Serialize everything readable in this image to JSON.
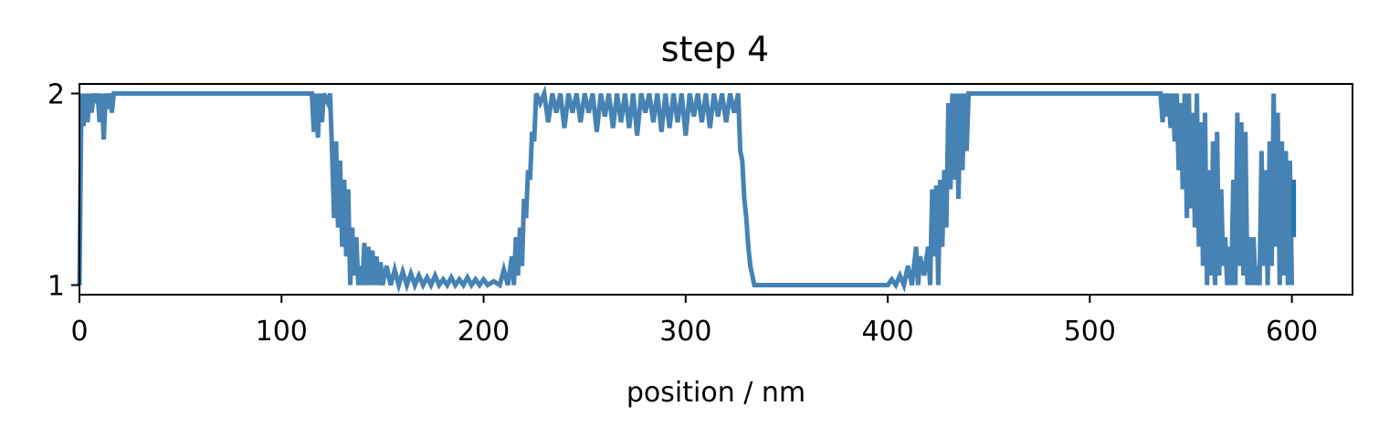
{
  "chart_data": {
    "type": "line",
    "title": "step 4",
    "xlabel": "position / nm",
    "ylabel": "",
    "xlim": [
      0,
      630
    ],
    "ylim": [
      0.95,
      2.05
    ],
    "xticks": [
      0,
      100,
      200,
      300,
      400,
      500,
      600
    ],
    "yticks": [
      1,
      2
    ],
    "grid": false,
    "legend": "none",
    "colors": {
      "series": "#4682b4",
      "tail": "#1f77b4"
    },
    "series": [
      {
        "points": [
          [
            0,
            1.0
          ],
          [
            0.5,
            1.5
          ],
          [
            1,
            2.0
          ],
          [
            2,
            1.83
          ],
          [
            3,
            2.0
          ],
          [
            4,
            1.85
          ],
          [
            5,
            2.0
          ],
          [
            6,
            1.9
          ],
          [
            7,
            2.0
          ],
          [
            8,
            1.95
          ],
          [
            9,
            2.0
          ],
          [
            10,
            1.85
          ],
          [
            11,
            2.0
          ],
          [
            12,
            1.76
          ],
          [
            13,
            2.0
          ],
          [
            14,
            1.92
          ],
          [
            15,
            2.0
          ],
          [
            16,
            1.9
          ],
          [
            17,
            2.0
          ],
          [
            115,
            2.0
          ],
          [
            116,
            1.8
          ],
          [
            117,
            2.0
          ],
          [
            118,
            1.77
          ],
          [
            119,
            2.0
          ],
          [
            120,
            1.85
          ],
          [
            121,
            2.0
          ],
          [
            123,
            1.95
          ],
          [
            124,
            2.0
          ],
          [
            125,
            1.7
          ],
          [
            126,
            1.35
          ],
          [
            127,
            1.75
          ],
          [
            128,
            1.3
          ],
          [
            129,
            1.65
          ],
          [
            130,
            1.2
          ],
          [
            131,
            1.55
          ],
          [
            132,
            1.15
          ],
          [
            133,
            1.5
          ],
          [
            134,
            1.0
          ],
          [
            135,
            1.3
          ],
          [
            136,
            1.05
          ],
          [
            137,
            1.25
          ],
          [
            138,
            1.0
          ],
          [
            139,
            1.1
          ],
          [
            140,
            1.0
          ],
          [
            141,
            1.22
          ],
          [
            142,
            1.0
          ],
          [
            143,
            1.2
          ],
          [
            144,
            1.0
          ],
          [
            145,
            1.18
          ],
          [
            146,
            1.0
          ],
          [
            147,
            1.15
          ],
          [
            148,
            1.0
          ],
          [
            149,
            1.12
          ],
          [
            150,
            1.0
          ],
          [
            152,
            1.1
          ],
          [
            154,
            1.0
          ],
          [
            156,
            1.08
          ],
          [
            158,
            1.0
          ],
          [
            160,
            1.07
          ],
          [
            162,
            1.0
          ],
          [
            164,
            1.06
          ],
          [
            166,
            1.0
          ],
          [
            168,
            1.05
          ],
          [
            170,
            1.0
          ],
          [
            172,
            1.04
          ],
          [
            174,
            1.0
          ],
          [
            176,
            1.05
          ],
          [
            178,
            1.0
          ],
          [
            180,
            1.03
          ],
          [
            182,
            1.0
          ],
          [
            184,
            1.04
          ],
          [
            186,
            1.0
          ],
          [
            188,
            1.03
          ],
          [
            190,
            1.0
          ],
          [
            192,
            1.04
          ],
          [
            194,
            1.0
          ],
          [
            196,
            1.03
          ],
          [
            198,
            1.0
          ],
          [
            200,
            1.03
          ],
          [
            202,
            1.0
          ],
          [
            205,
            1.02
          ],
          [
            208,
            1.0
          ],
          [
            210,
            1.08
          ],
          [
            212,
            1.0
          ],
          [
            214,
            1.15
          ],
          [
            215,
            1.0
          ],
          [
            216,
            1.25
          ],
          [
            217,
            1.05
          ],
          [
            218,
            1.3
          ],
          [
            219,
            1.1
          ],
          [
            220,
            1.45
          ],
          [
            221,
            1.35
          ],
          [
            222,
            1.6
          ],
          [
            223,
            1.55
          ],
          [
            224,
            1.8
          ],
          [
            225,
            1.75
          ],
          [
            226,
            2.0
          ],
          [
            228,
            1.95
          ],
          [
            230,
            2.0
          ],
          [
            232,
            1.85
          ],
          [
            234,
            2.0
          ],
          [
            236,
            1.9
          ],
          [
            238,
            2.0
          ],
          [
            240,
            1.82
          ],
          [
            242,
            2.0
          ],
          [
            244,
            1.9
          ],
          [
            246,
            2.0
          ],
          [
            248,
            1.85
          ],
          [
            250,
            2.0
          ],
          [
            252,
            1.9
          ],
          [
            254,
            2.0
          ],
          [
            256,
            1.8
          ],
          [
            258,
            2.0
          ],
          [
            260,
            1.88
          ],
          [
            262,
            2.0
          ],
          [
            264,
            1.82
          ],
          [
            266,
            2.0
          ],
          [
            268,
            1.85
          ],
          [
            270,
            2.0
          ],
          [
            272,
            1.82
          ],
          [
            274,
            2.0
          ],
          [
            276,
            1.78
          ],
          [
            278,
            2.0
          ],
          [
            280,
            1.9
          ],
          [
            282,
            2.0
          ],
          [
            284,
            1.85
          ],
          [
            286,
            2.0
          ],
          [
            288,
            1.8
          ],
          [
            290,
            2.0
          ],
          [
            292,
            1.82
          ],
          [
            294,
            2.0
          ],
          [
            296,
            1.85
          ],
          [
            298,
            2.0
          ],
          [
            300,
            1.78
          ],
          [
            302,
            2.0
          ],
          [
            304,
            1.88
          ],
          [
            306,
            2.0
          ],
          [
            308,
            1.85
          ],
          [
            310,
            2.0
          ],
          [
            312,
            1.82
          ],
          [
            314,
            2.0
          ],
          [
            316,
            1.88
          ],
          [
            318,
            2.0
          ],
          [
            320,
            1.85
          ],
          [
            322,
            2.0
          ],
          [
            324,
            1.9
          ],
          [
            326,
            2.0
          ],
          [
            327,
            1.7
          ],
          [
            328,
            1.65
          ],
          [
            329,
            1.45
          ],
          [
            330,
            1.35
          ],
          [
            331,
            1.2
          ],
          [
            332,
            1.1
          ],
          [
            333,
            1.05
          ],
          [
            334,
            1.0
          ],
          [
            340,
            1.0
          ],
          [
            350,
            1.0
          ],
          [
            360,
            1.0
          ],
          [
            370,
            1.0
          ],
          [
            380,
            1.0
          ],
          [
            390,
            1.0
          ],
          [
            400,
            1.0
          ],
          [
            402,
            1.03
          ],
          [
            404,
            1.0
          ],
          [
            406,
            1.05
          ],
          [
            408,
            1.0
          ],
          [
            410,
            1.1
          ],
          [
            412,
            1.0
          ],
          [
            414,
            1.2
          ],
          [
            415,
            1.0
          ],
          [
            416,
            1.15
          ],
          [
            418,
            1.05
          ],
          [
            420,
            1.2
          ],
          [
            421,
            1.0
          ],
          [
            422,
            1.5
          ],
          [
            423,
            1.15
          ],
          [
            424,
            1.52
          ],
          [
            425,
            1.0
          ],
          [
            426,
            1.55
          ],
          [
            427,
            1.2
          ],
          [
            428,
            1.6
          ],
          [
            429,
            1.3
          ],
          [
            430,
            1.95
          ],
          [
            431,
            1.5
          ],
          [
            432,
            2.0
          ],
          [
            433,
            1.55
          ],
          [
            434,
            2.0
          ],
          [
            435,
            1.45
          ],
          [
            436,
            2.0
          ],
          [
            437,
            1.6
          ],
          [
            438,
            2.0
          ],
          [
            439,
            1.7
          ],
          [
            440,
            2.0
          ],
          [
            535,
            2.0
          ],
          [
            536,
            1.85
          ],
          [
            537,
            2.0
          ],
          [
            538,
            1.88
          ],
          [
            539,
            2.0
          ],
          [
            540,
            1.82
          ],
          [
            541,
            2.0
          ],
          [
            542,
            1.75
          ],
          [
            543,
            2.0
          ],
          [
            544,
            1.6
          ],
          [
            545,
            1.95
          ],
          [
            546,
            1.5
          ],
          [
            547,
            2.0
          ],
          [
            548,
            1.35
          ],
          [
            549,
            2.0
          ],
          [
            550,
            1.4
          ],
          [
            551,
            1.9
          ],
          [
            552,
            1.3
          ],
          [
            553,
            2.0
          ],
          [
            554,
            1.2
          ],
          [
            555,
            1.85
          ],
          [
            556,
            1.1
          ],
          [
            557,
            1.9
          ],
          [
            558,
            1.0
          ],
          [
            559,
            1.6
          ],
          [
            560,
            1.05
          ],
          [
            561,
            1.75
          ],
          [
            562,
            1.0
          ],
          [
            563,
            1.8
          ],
          [
            564,
            1.05
          ],
          [
            565,
            1.5
          ],
          [
            566,
            1.1
          ],
          [
            567,
            1.25
          ],
          [
            568,
            1.0
          ],
          [
            569,
            1.2
          ],
          [
            570,
            1.0
          ],
          [
            571,
            1.55
          ],
          [
            572,
            1.0
          ],
          [
            573,
            1.9
          ],
          [
            574,
            1.1
          ],
          [
            575,
            1.85
          ],
          [
            576,
            1.05
          ],
          [
            577,
            1.8
          ],
          [
            578,
            1.0
          ],
          [
            579,
            1.25
          ],
          [
            580,
            1.0
          ],
          [
            581,
            1.25
          ],
          [
            582,
            1.0
          ],
          [
            583,
            1.1
          ],
          [
            584,
            1.0
          ],
          [
            585,
            1.7
          ],
          [
            586,
            1.1
          ],
          [
            587,
            1.6
          ],
          [
            588,
            1.0
          ],
          [
            589,
            1.75
          ],
          [
            590,
            1.1
          ],
          [
            591,
            2.0
          ],
          [
            592,
            1.2
          ],
          [
            593,
            1.9
          ],
          [
            594,
            1.0
          ],
          [
            595,
            1.75
          ],
          [
            596,
            1.05
          ],
          [
            597,
            1.7
          ],
          [
            598,
            1.0
          ],
          [
            599,
            1.65
          ],
          [
            600,
            1.0
          ]
        ]
      }
    ],
    "tail_segment": [
      [
        600,
        1.25
      ],
      [
        600,
        1.55
      ]
    ]
  }
}
